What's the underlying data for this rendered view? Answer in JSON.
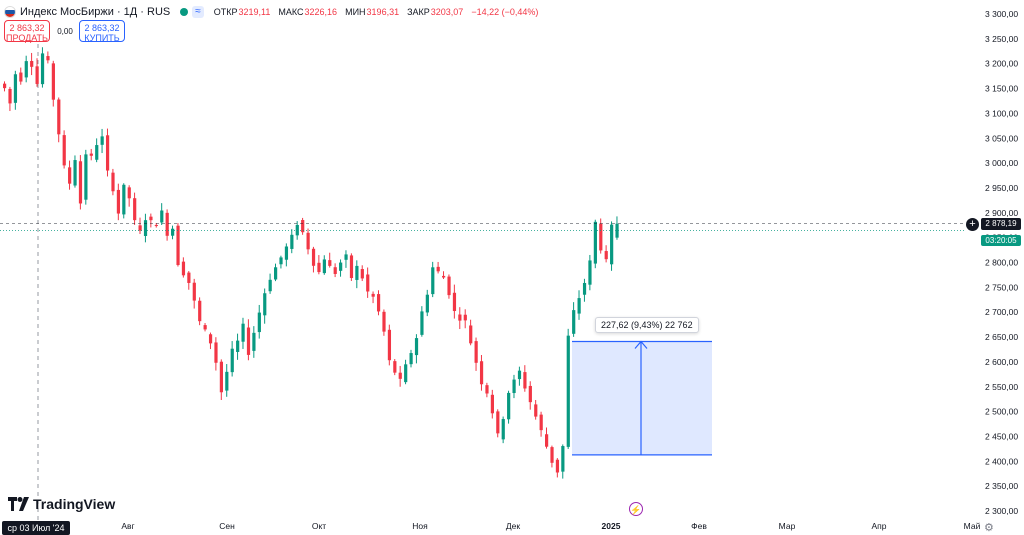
{
  "header": {
    "title": "Индекс МосБиржи · 1Д · RUS",
    "open_label": "ОТКР",
    "open_value": "3219,11",
    "high_label": "МАКС",
    "high_value": "3226,16",
    "low_label": "МИН",
    "low_value": "3196,31",
    "close_label": "ЗАКР",
    "close_value": "3203,07",
    "change": "−14,22 (−0,44%)",
    "wave_icon": "≈"
  },
  "trade": {
    "sell_price": "2 863,32",
    "sell_label": "ПРОДАТЬ",
    "spread": "0,00",
    "buy_price": "2 863,32",
    "buy_label": "КУПИТЬ"
  },
  "brand": "TradingView",
  "cursor_date": "ср 03 Июл '24",
  "current_price": "2 878,19",
  "countdown": "03:20:05",
  "measure_label": "227,62 (9,43%) 22 762",
  "colors": {
    "up": "#089981",
    "down": "#f23645",
    "measure": "#2962ff"
  },
  "chart_data": {
    "type": "candlestick",
    "y_axis_ticks": [
      "3 300,00",
      "3 250,00",
      "3 200,00",
      "3 150,00",
      "3 100,00",
      "3 050,00",
      "3 000,00",
      "2 950,00",
      "2 900,00",
      "2 850,00",
      "2 800,00",
      "2 750,00",
      "2 700,00",
      "2 650,00",
      "2 600,00",
      "2 550,00",
      "2 500,00",
      "2 450,00",
      "2 400,00",
      "2 350,00",
      "2 300,00"
    ],
    "x_axis_ticks": [
      "Авг",
      "Сен",
      "Окт",
      "Ноя",
      "Дек",
      "2025",
      "Фев",
      "Мар",
      "Апр",
      "Май"
    ],
    "ylim": [
      2300,
      3300
    ],
    "close_path": [
      3150,
      3120,
      3180,
      3170,
      3210,
      3200,
      3160,
      3220,
      3200,
      3130,
      3060,
      2990,
      2960,
      3010,
      2920,
      3020,
      3010,
      3040,
      3050,
      2980,
      2950,
      2900,
      2950,
      2930,
      2880,
      2860,
      2890,
      2880,
      2880,
      2900,
      2860,
      2870,
      2800,
      2780,
      2760,
      2720,
      2680,
      2660,
      2640,
      2600,
      2540,
      2580,
      2620,
      2640,
      2670,
      2620,
      2660,
      2700,
      2740,
      2770,
      2790,
      2810,
      2830,
      2850,
      2880,
      2860,
      2830,
      2800,
      2780,
      2810,
      2790,
      2780,
      2800,
      2810,
      2770,
      2790,
      2770,
      2740,
      2730,
      2700,
      2660,
      2600,
      2580,
      2560,
      2590,
      2620,
      2650,
      2700,
      2740,
      2790,
      2780,
      2770,
      2740,
      2700,
      2690,
      2680,
      2640,
      2600,
      2560,
      2540,
      2500,
      2450,
      2490,
      2540,
      2560,
      2580,
      2550,
      2520,
      2490,
      2460,
      2430,
      2400,
      2380,
      2430,
      2650,
      2700,
      2730,
      2760,
      2800,
      2880,
      2830,
      2800,
      2870,
      2870
    ],
    "current_price": 2878.19,
    "measure": {
      "from": 2413,
      "to": 2641,
      "change": "227,62 (9,43%)",
      "bars": "22 762"
    }
  }
}
